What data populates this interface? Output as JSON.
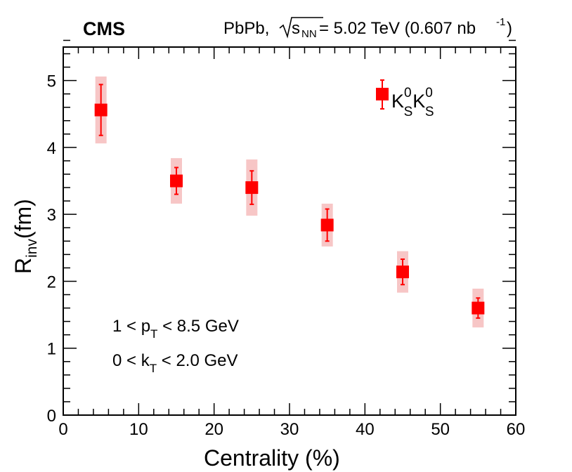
{
  "chart_data": {
    "type": "scatter",
    "experiment": "CMS",
    "header": {
      "system": "PbPb,",
      "sqrt": "√",
      "s_var": "s",
      "s_sub": "NN",
      "energy": " = 5.02 TeV (0.607 nb",
      "lumi_sup": "-1",
      "close": ")"
    },
    "xlabel": "Centrality (%)",
    "ylabel": {
      "main": "R",
      "sub": "inv",
      "unit": "(fm)"
    },
    "xlim": [
      0,
      60
    ],
    "ylim": [
      0,
      5.5
    ],
    "xticks": [
      "0",
      "10",
      "20",
      "30",
      "40",
      "50",
      "60"
    ],
    "yticks": [
      "0",
      "1",
      "2",
      "3",
      "4",
      "5"
    ],
    "series": [
      {
        "name": "K0S K0S",
        "legend": {
          "k1": "K",
          "sup1": "0",
          "sub1": "S",
          "k2": "K",
          "sup2": "0",
          "sub2": "S"
        },
        "color": "#ff0000",
        "syst_color": "#f7c6c6",
        "x": [
          5,
          15,
          25,
          35,
          45,
          55
        ],
        "y": [
          4.56,
          3.5,
          3.4,
          2.84,
          2.14,
          1.6
        ],
        "stat_err": [
          0.38,
          0.2,
          0.25,
          0.24,
          0.19,
          0.15
        ],
        "syst_err": [
          0.5,
          0.34,
          0.42,
          0.32,
          0.31,
          0.29
        ]
      }
    ],
    "annotations": [
      {
        "prefix": "1 < p",
        "sub": "T",
        "suffix": " < 8.5 GeV"
      },
      {
        "prefix": "0 < k",
        "sub": "T",
        "suffix": " < 2.0 GeV"
      }
    ]
  }
}
